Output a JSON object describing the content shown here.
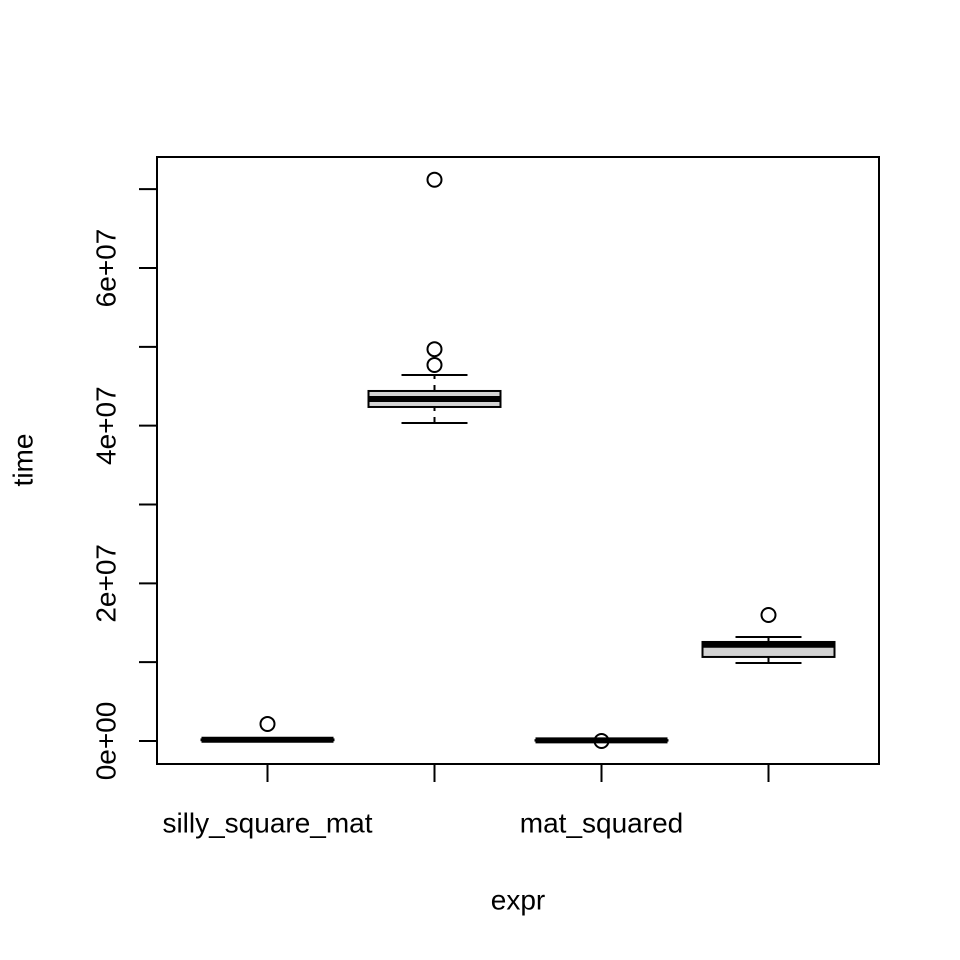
{
  "chart_data": {
    "type": "boxplot",
    "x_label": "expr",
    "y_label": "time",
    "categories": [
      "silly_square_mat",
      null,
      "mat_squared",
      null
    ],
    "boxes": [
      {
        "min": 50000,
        "q1": 100000,
        "median": 150000,
        "q3": 200000,
        "max": 300000,
        "outliers": [
          2160000
        ]
      },
      {
        "min": 40340000,
        "q1": 42370000,
        "median": 43380000,
        "q3": 44400000,
        "max": 46430000,
        "outliers": [
          47700000,
          49700000,
          71200000
        ]
      },
      {
        "min": 20000,
        "q1": 50000,
        "median": 80000,
        "q3": 100000,
        "max": 150000,
        "outliers": [
          0
        ]
      },
      {
        "min": 9900000,
        "q1": 10660000,
        "median": 12200000,
        "q3": 12560000,
        "max": 13190000,
        "outliers": [
          15980000
        ]
      }
    ],
    "color": "#d3d3d3",
    "ylim": [
      -2920000,
      74080000
    ],
    "yticks": [
      {
        "value": 0,
        "label": "0e+00"
      },
      {
        "value": 20000000,
        "label": "2e+07"
      },
      {
        "value": 40000000,
        "label": "4e+07"
      },
      {
        "value": 60000000,
        "label": "6e+07"
      }
    ],
    "yminor_ticks": [
      10000000,
      30000000,
      50000000,
      70000000
    ]
  }
}
